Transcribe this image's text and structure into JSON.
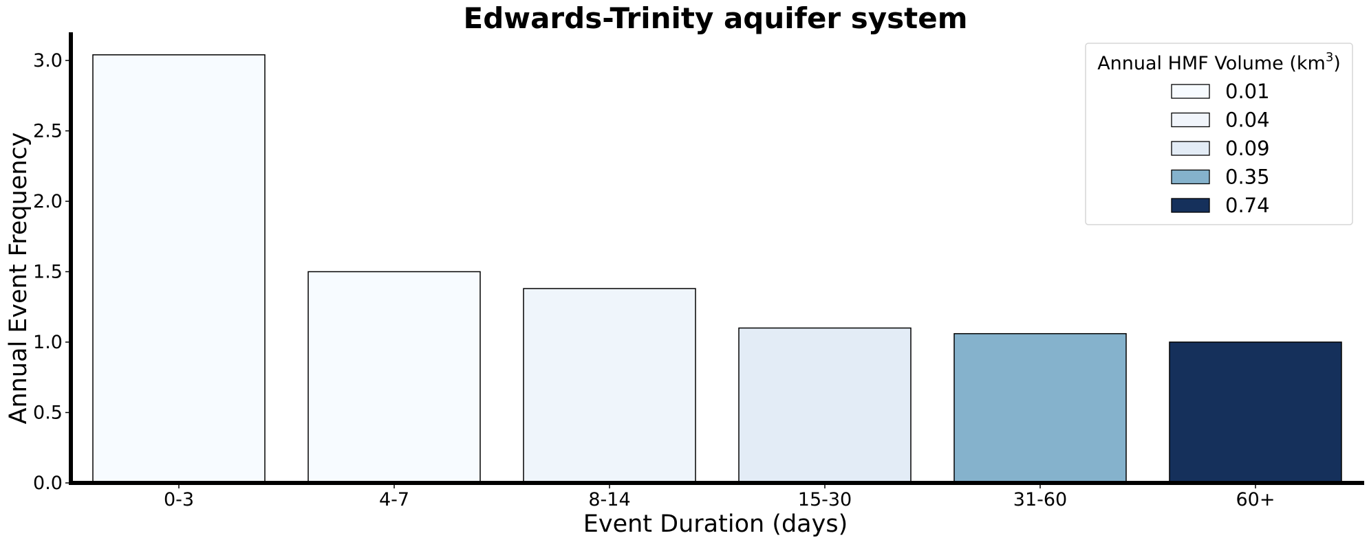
{
  "chart_data": {
    "type": "bar",
    "title": "Edwards-Trinity aquifer system",
    "xlabel": "Event Duration (days)",
    "ylabel": "Annual Event Frequency",
    "categories": [
      "0-3",
      "4-7",
      "8-14",
      "15-30",
      "31-60",
      "60+"
    ],
    "values": [
      3.04,
      1.5,
      1.38,
      1.1,
      1.06,
      1.0
    ],
    "bar_colors": [
      "#f7fbff",
      "#f7fbff",
      "#eff5fb",
      "#e3ecf6",
      "#85b2cc",
      "#15305b"
    ],
    "ylim": [
      0,
      3.2
    ],
    "yticks": [
      0.0,
      0.5,
      1.0,
      1.5,
      2.0,
      2.5,
      3.0
    ],
    "ytick_labels": [
      "0.0",
      "0.5",
      "1.0",
      "1.5",
      "2.0",
      "2.5",
      "3.0"
    ],
    "grid": false,
    "legend": {
      "title": "Annual HMF Volume (km",
      "title_superscript": "3",
      "title_suffix": ")",
      "placement": "top-right",
      "entries": [
        {
          "label": "0.01",
          "color": "#f7fbff"
        },
        {
          "label": "0.04",
          "color": "#f1f5fb"
        },
        {
          "label": "0.09",
          "color": "#e3ecf6"
        },
        {
          "label": "0.35",
          "color": "#85b2cc"
        },
        {
          "label": "0.74",
          "color": "#15305b"
        }
      ]
    }
  }
}
